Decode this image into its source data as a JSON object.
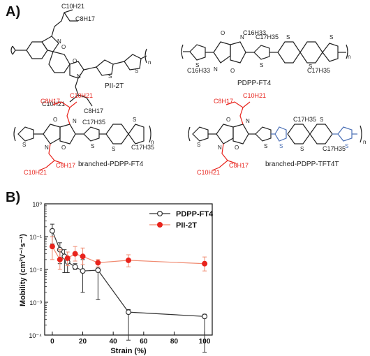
{
  "panel_a": {
    "label": "A)",
    "structures": [
      {
        "name": "PII-2T",
        "side_chain_top": [
          "C10H21",
          "C8H17"
        ],
        "side_chain_bottom": [
          "C10H21",
          "C8H17"
        ],
        "repeat": "n"
      },
      {
        "name": "PDPP-FT4",
        "side_chains": [
          "C16H33",
          "C17H35",
          "C17H35",
          "C16H33"
        ],
        "repeat": "n"
      },
      {
        "name": "branched-PDPP-FT4",
        "side_chains": [
          "C8H17",
          "C10H21",
          "C17H35",
          "C17H35",
          "C10H21",
          "C8H17"
        ],
        "repeat": "n"
      },
      {
        "name": "branched-PDPP-TFT4T",
        "side_chains": [
          "C8H17",
          "C10H21",
          "C17H35",
          "C17H35",
          "C10H21",
          "C8H17"
        ],
        "repeat": "n"
      }
    ]
  },
  "panel_b": {
    "label": "B)"
  },
  "colors": {
    "pdpp": "#333333",
    "pii": "#e8231c",
    "pii_line": "#f08a70",
    "branched": "#e8231c",
    "thiophene_blue": "#4a6fb5"
  },
  "chart_data": {
    "type": "line",
    "title": "",
    "xlabel": "Strain (%)",
    "ylabel": "Mobility (cm²V⁻¹s⁻¹)",
    "xlim": [
      -5,
      105
    ],
    "ylim": [
      0.0001,
      1
    ],
    "ylog": true,
    "xticks": [
      0,
      20,
      40,
      60,
      80,
      100
    ],
    "yticks": [
      {
        "value": 1,
        "label": "10⁰"
      },
      {
        "value": 0.1,
        "label": "10⁻¹"
      },
      {
        "value": 0.01,
        "label": "10⁻²"
      },
      {
        "value": 0.001,
        "label": "10⁻³"
      },
      {
        "value": 0.0001,
        "label": "10⁻⁴"
      }
    ],
    "legend_position": "top-right",
    "series": [
      {
        "name": "PDPP-FT4",
        "marker": "open-circle",
        "x": [
          0,
          5,
          8,
          10,
          15,
          20,
          30,
          50,
          100
        ],
        "y": [
          0.15,
          0.04,
          0.025,
          0.017,
          0.012,
          0.009,
          0.0095,
          0.0005,
          0.00037
        ],
        "err_low": [
          0.06,
          0.015,
          0.008,
          0.008,
          0.01,
          0.002,
          0.0012,
          7e-05,
          3e-05
        ],
        "err_high": [
          0.24,
          0.065,
          0.04,
          0.023,
          0.015,
          0.02,
          0.011,
          0.0006,
          0.00043
        ]
      },
      {
        "name": "PII-2T",
        "marker": "filled-circle",
        "x": [
          0,
          5,
          10,
          15,
          20,
          30,
          50,
          100
        ],
        "y": [
          0.05,
          0.02,
          0.022,
          0.03,
          0.025,
          0.016,
          0.019,
          0.015
        ],
        "err_low": [
          0.02,
          0.01,
          0.013,
          0.018,
          0.014,
          0.012,
          0.012,
          0.009
        ],
        "err_high": [
          0.1,
          0.04,
          0.034,
          0.05,
          0.045,
          0.02,
          0.028,
          0.024
        ]
      }
    ]
  }
}
